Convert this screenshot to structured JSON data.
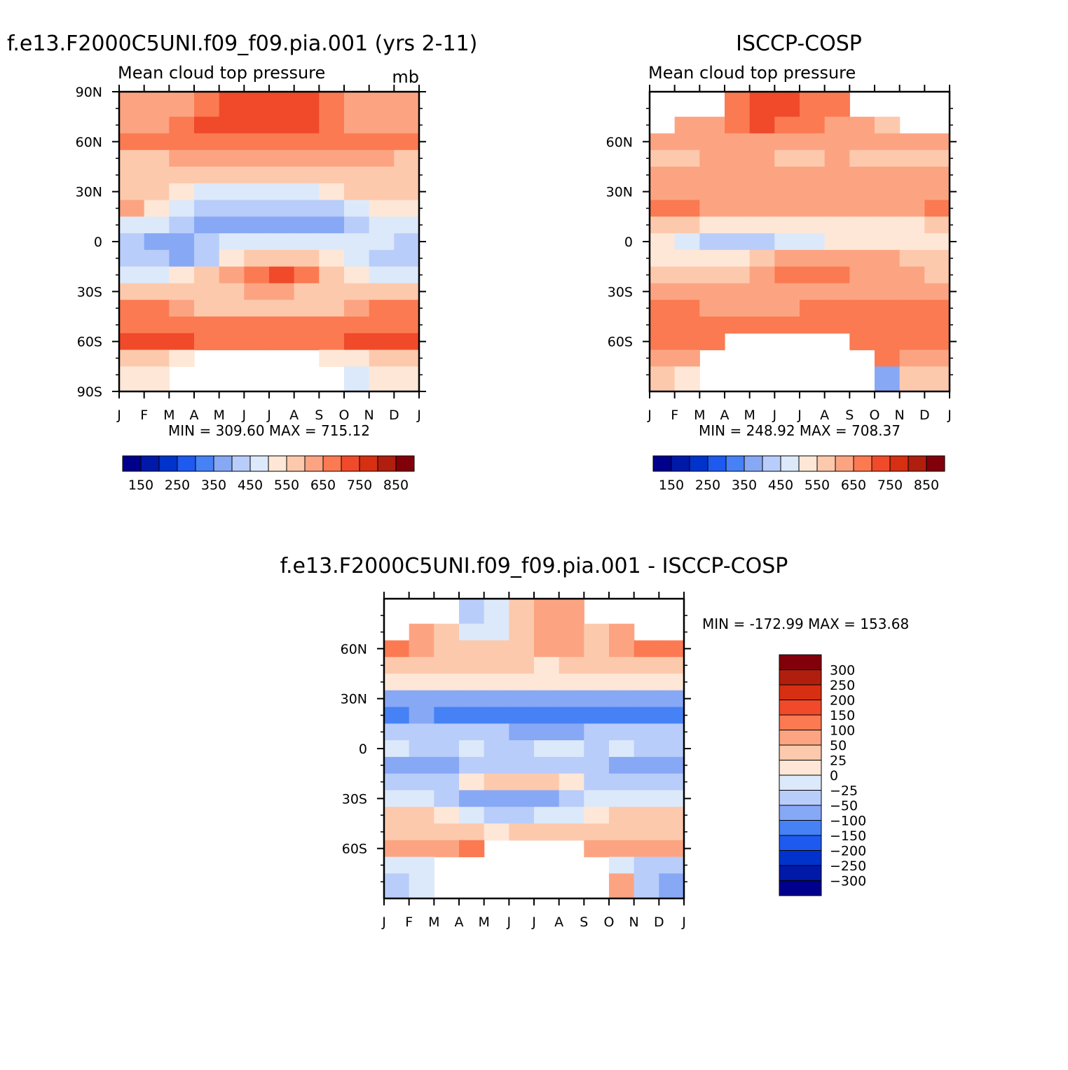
{
  "chart_data": [
    {
      "type": "heatmap",
      "title": "f.e13.F2000C5UNI.f09_f09.pia.001 (yrs 2-11)",
      "subtitle": "Mean cloud top pressure",
      "units": "mb",
      "x_tick_labels": [
        "J",
        "F",
        "M",
        "A",
        "M",
        "J",
        "J",
        "A",
        "S",
        "O",
        "N",
        "D",
        "J"
      ],
      "y_tick_labels": [
        "90N",
        "60N",
        "30N",
        "0",
        "30S",
        "60S",
        "90S"
      ],
      "ylim": [
        -90,
        90
      ],
      "min_max": "MIN = 309.60 MAX = 715.12",
      "months": [
        "J",
        "F",
        "M",
        "A",
        "M",
        "J",
        "J",
        "A",
        "S",
        "O",
        "N",
        "D"
      ],
      "latitudes": [
        80,
        70,
        60,
        50,
        40,
        30,
        20,
        10,
        0,
        -10,
        -20,
        -30,
        -40,
        -50,
        -60,
        -70,
        -80
      ],
      "values": [
        [
          600,
          600,
          625,
          650,
          700,
          700,
          700,
          700,
          650,
          600,
          600,
          600
        ],
        [
          600,
          600,
          650,
          700,
          700,
          700,
          700,
          700,
          650,
          600,
          600,
          600
        ],
        [
          650,
          650,
          650,
          650,
          650,
          650,
          650,
          650,
          650,
          650,
          650,
          650
        ],
        [
          550,
          550,
          600,
          600,
          600,
          600,
          600,
          600,
          600,
          600,
          600,
          550
        ],
        [
          550,
          550,
          550,
          550,
          550,
          550,
          550,
          550,
          550,
          550,
          550,
          550
        ],
        [
          550,
          550,
          500,
          450,
          450,
          450,
          450,
          450,
          500,
          550,
          550,
          550
        ],
        [
          600,
          500,
          450,
          400,
          400,
          400,
          400,
          400,
          400,
          450,
          500,
          500
        ],
        [
          450,
          450,
          400,
          350,
          350,
          350,
          350,
          350,
          350,
          400,
          450,
          450
        ],
        [
          400,
          350,
          350,
          400,
          450,
          450,
          450,
          450,
          450,
          450,
          450,
          400
        ],
        [
          400,
          400,
          350,
          400,
          500,
          550,
          550,
          550,
          500,
          450,
          400,
          400
        ],
        [
          450,
          450,
          500,
          550,
          600,
          650,
          700,
          650,
          550,
          500,
          450,
          450
        ],
        [
          550,
          550,
          550,
          550,
          550,
          600,
          600,
          550,
          550,
          550,
          550,
          550
        ],
        [
          650,
          650,
          600,
          550,
          550,
          550,
          550,
          550,
          550,
          600,
          650,
          650
        ],
        [
          650,
          650,
          650,
          650,
          650,
          650,
          650,
          650,
          650,
          650,
          650,
          650
        ],
        [
          700,
          700,
          700,
          650,
          650,
          650,
          650,
          650,
          650,
          700,
          700,
          700
        ],
        [
          550,
          550,
          500,
          null,
          null,
          null,
          null,
          null,
          500,
          500,
          550,
          550
        ],
        [
          500,
          500,
          null,
          null,
          null,
          null,
          null,
          null,
          null,
          450,
          500,
          500
        ]
      ],
      "colorbar": {
        "orientation": "horizontal",
        "colors": [
          "#00008c",
          "#0019a8",
          "#0033cc",
          "#1e5af0",
          "#4682f5",
          "#87a8f5",
          "#b9cdfa",
          "#dce9fa",
          "#fee7d6",
          "#fdc9ad",
          "#fca482",
          "#fb7a52",
          "#f04a2a",
          "#d62f12",
          "#b01e0e",
          "#82000a"
        ],
        "labels": [
          "150",
          "250",
          "350",
          "450",
          "550",
          "650",
          "750",
          "850"
        ],
        "levels": [
          100,
          150,
          200,
          250,
          300,
          350,
          400,
          450,
          500,
          550,
          600,
          650,
          700,
          750,
          800,
          850,
          900
        ]
      }
    },
    {
      "type": "heatmap",
      "title": "ISCCP-COSP",
      "subtitle": "Mean cloud top pressure",
      "x_tick_labels": [
        "J",
        "F",
        "M",
        "A",
        "M",
        "J",
        "J",
        "A",
        "S",
        "O",
        "N",
        "D",
        "J"
      ],
      "y_tick_labels": [
        "60N",
        "30N",
        "0",
        "30S",
        "60S"
      ],
      "ylim": [
        -90,
        90
      ],
      "min_max": "MIN = 248.92 MAX = 708.37",
      "months": [
        "J",
        "F",
        "M",
        "A",
        "M",
        "J",
        "J",
        "A",
        "S",
        "O",
        "N",
        "D"
      ],
      "latitudes": [
        80,
        70,
        60,
        50,
        40,
        30,
        20,
        10,
        0,
        -10,
        -20,
        -30,
        -40,
        -50,
        -60,
        -70,
        -80
      ],
      "values": [
        [
          null,
          null,
          null,
          650,
          700,
          700,
          650,
          650,
          null,
          null,
          null,
          null
        ],
        [
          null,
          600,
          600,
          650,
          700,
          650,
          650,
          600,
          600,
          550,
          null,
          null
        ],
        [
          600,
          600,
          600,
          600,
          600,
          600,
          600,
          600,
          600,
          600,
          600,
          600
        ],
        [
          550,
          550,
          600,
          600,
          600,
          550,
          550,
          600,
          550,
          550,
          550,
          550
        ],
        [
          600,
          600,
          600,
          600,
          600,
          600,
          600,
          600,
          600,
          600,
          600,
          600
        ],
        [
          600,
          600,
          600,
          600,
          600,
          600,
          600,
          600,
          600,
          600,
          600,
          600
        ],
        [
          650,
          650,
          600,
          600,
          600,
          600,
          600,
          600,
          600,
          600,
          600,
          650
        ],
        [
          550,
          550,
          500,
          500,
          500,
          500,
          500,
          500,
          500,
          500,
          500,
          550
        ],
        [
          500,
          450,
          400,
          400,
          400,
          450,
          450,
          500,
          500,
          500,
          500,
          500
        ],
        [
          500,
          500,
          500,
          500,
          550,
          600,
          600,
          600,
          600,
          600,
          550,
          550
        ],
        [
          550,
          550,
          550,
          550,
          600,
          650,
          650,
          650,
          600,
          600,
          600,
          550
        ],
        [
          600,
          600,
          600,
          600,
          600,
          600,
          600,
          600,
          600,
          600,
          600,
          600
        ],
        [
          650,
          650,
          600,
          600,
          600,
          600,
          650,
          650,
          650,
          650,
          650,
          650
        ],
        [
          650,
          650,
          650,
          650,
          650,
          650,
          650,
          650,
          650,
          650,
          650,
          650
        ],
        [
          650,
          650,
          650,
          null,
          null,
          null,
          null,
          null,
          650,
          650,
          650,
          650
        ],
        [
          600,
          600,
          null,
          null,
          null,
          null,
          null,
          null,
          null,
          650,
          600,
          600
        ],
        [
          550,
          500,
          null,
          null,
          null,
          null,
          null,
          null,
          null,
          350,
          550,
          550
        ]
      ],
      "colorbar": {
        "orientation": "horizontal",
        "colors": [
          "#00008c",
          "#0019a8",
          "#0033cc",
          "#1e5af0",
          "#4682f5",
          "#87a8f5",
          "#b9cdfa",
          "#dce9fa",
          "#fee7d6",
          "#fdc9ad",
          "#fca482",
          "#fb7a52",
          "#f04a2a",
          "#d62f12",
          "#b01e0e",
          "#82000a"
        ],
        "labels": [
          "150",
          "250",
          "350",
          "450",
          "550",
          "650",
          "750",
          "850"
        ],
        "levels": [
          100,
          150,
          200,
          250,
          300,
          350,
          400,
          450,
          500,
          550,
          600,
          650,
          700,
          750,
          800,
          850,
          900
        ]
      }
    },
    {
      "type": "heatmap",
      "title": "f.e13.F2000C5UNI.f09_f09.pia.001 - ISCCP-COSP",
      "x_tick_labels": [
        "J",
        "F",
        "M",
        "A",
        "M",
        "J",
        "J",
        "A",
        "S",
        "O",
        "N",
        "D",
        "J"
      ],
      "y_tick_labels": [
        "60N",
        "30N",
        "0",
        "30S",
        "60S"
      ],
      "ylim": [
        -90,
        90
      ],
      "min_max": "MIN = -172.99 MAX = 153.68",
      "months": [
        "J",
        "F",
        "M",
        "A",
        "M",
        "J",
        "J",
        "A",
        "S",
        "O",
        "N",
        "D"
      ],
      "latitudes": [
        80,
        70,
        60,
        50,
        40,
        30,
        20,
        10,
        0,
        -10,
        -20,
        -30,
        -40,
        -50,
        -60,
        -70,
        -80
      ],
      "values": [
        [
          null,
          null,
          null,
          -50,
          -25,
          25,
          50,
          50,
          null,
          null,
          null,
          null
        ],
        [
          null,
          50,
          25,
          -25,
          -25,
          25,
          50,
          50,
          25,
          50,
          null,
          null
        ],
        [
          100,
          50,
          25,
          25,
          25,
          25,
          50,
          50,
          25,
          50,
          100,
          100
        ],
        [
          25,
          25,
          25,
          25,
          25,
          25,
          0,
          25,
          25,
          25,
          25,
          25
        ],
        [
          0,
          0,
          0,
          0,
          0,
          0,
          0,
          0,
          0,
          0,
          0,
          0
        ],
        [
          -100,
          -100,
          -100,
          -100,
          -100,
          -100,
          -100,
          -100,
          -100,
          -100,
          -100,
          -100
        ],
        [
          -150,
          -100,
          -150,
          -150,
          -150,
          -150,
          -150,
          -150,
          -150,
          -150,
          -150,
          -150
        ],
        [
          -50,
          -50,
          -50,
          -50,
          -50,
          -100,
          -100,
          -100,
          -50,
          -50,
          -50,
          -50
        ],
        [
          -25,
          -50,
          -50,
          -25,
          -50,
          -50,
          -25,
          -25,
          -50,
          -25,
          -50,
          -50
        ],
        [
          -100,
          -100,
          -100,
          -50,
          -50,
          -50,
          -50,
          -50,
          -50,
          -100,
          -100,
          -100
        ],
        [
          -50,
          -50,
          -50,
          0,
          25,
          25,
          25,
          0,
          -50,
          -50,
          -50,
          -50
        ],
        [
          -25,
          -25,
          -50,
          -100,
          -100,
          -100,
          -100,
          -50,
          -25,
          -25,
          -25,
          -25
        ],
        [
          25,
          25,
          0,
          -25,
          -50,
          -50,
          -25,
          -25,
          0,
          25,
          25,
          25
        ],
        [
          25,
          25,
          25,
          25,
          0,
          25,
          25,
          25,
          25,
          25,
          25,
          25
        ],
        [
          50,
          50,
          50,
          100,
          null,
          null,
          null,
          null,
          50,
          50,
          50,
          50
        ],
        [
          -25,
          -25,
          null,
          null,
          null,
          null,
          null,
          null,
          null,
          -25,
          -50,
          -50
        ],
        [
          -50,
          -25,
          null,
          null,
          null,
          null,
          null,
          null,
          null,
          50,
          -50,
          -100
        ]
      ],
      "colorbar": {
        "orientation": "vertical",
        "colors": [
          "#00008c",
          "#0019a8",
          "#0033cc",
          "#1e5af0",
          "#4682f5",
          "#87a8f5",
          "#b9cdfa",
          "#dce9fa",
          "#fee7d6",
          "#fdc9ad",
          "#fca482",
          "#fb7a52",
          "#f04a2a",
          "#d62f12",
          "#b01e0e",
          "#82000a"
        ],
        "labels": [
          "300",
          "250",
          "200",
          "150",
          "100",
          "50",
          "25",
          "0",
          "−25",
          "−50",
          "−100",
          "−150",
          "−200",
          "−250",
          "−300"
        ],
        "levels": [
          -350,
          -300,
          -250,
          -200,
          -150,
          -100,
          -50,
          -25,
          0,
          25,
          50,
          100,
          150,
          200,
          250,
          300,
          350
        ]
      }
    }
  ]
}
